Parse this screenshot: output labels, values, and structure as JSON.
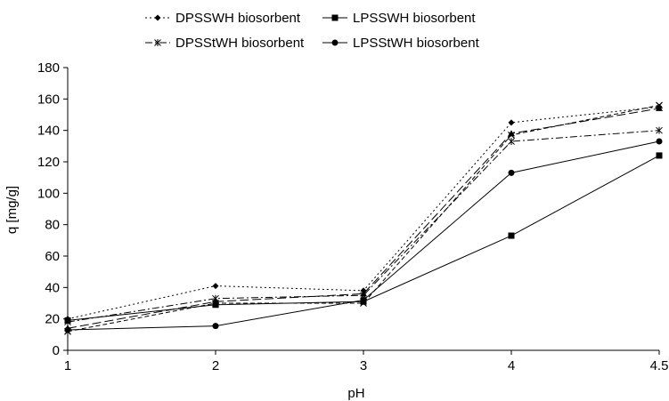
{
  "chart_data": {
    "type": "line",
    "title": "",
    "xlabel": "pH",
    "ylabel": "q [mg/g]",
    "categories": [
      "1",
      "2",
      "3",
      "4",
      "4.5"
    ],
    "ylim": [
      0,
      180
    ],
    "yticks": [
      "0",
      "20",
      "40",
      "60",
      "80",
      "100",
      "120",
      "140",
      "160",
      "180"
    ],
    "grid": false,
    "legend_position": "top",
    "series": [
      {
        "name": "DPSSWH biosorbent",
        "marker": "diamond",
        "dash": "2,3",
        "values": [
          20,
          41,
          38,
          145,
          155
        ]
      },
      {
        "name": "LPSSWH biosorbent",
        "marker": "square",
        "dash": "",
        "values": [
          19,
          29,
          31,
          73,
          124
        ]
      },
      {
        "name": "DPSStWH biosorbent",
        "marker": "star",
        "dash": "8,3,2,3",
        "values": [
          18,
          33,
          35,
          133,
          140
        ]
      },
      {
        "name": "LPSStWH biosorbent",
        "marker": "circle",
        "dash": "",
        "values": [
          13,
          15.5,
          32,
          113,
          133
        ]
      },
      {
        "name": "",
        "marker": "triangle",
        "dash": "10,4",
        "values": [
          14,
          31,
          36,
          138,
          154
        ]
      },
      {
        "name": "",
        "marker": "cross",
        "dash": "5,3",
        "values": [
          12,
          30,
          30,
          137,
          156
        ]
      }
    ]
  }
}
